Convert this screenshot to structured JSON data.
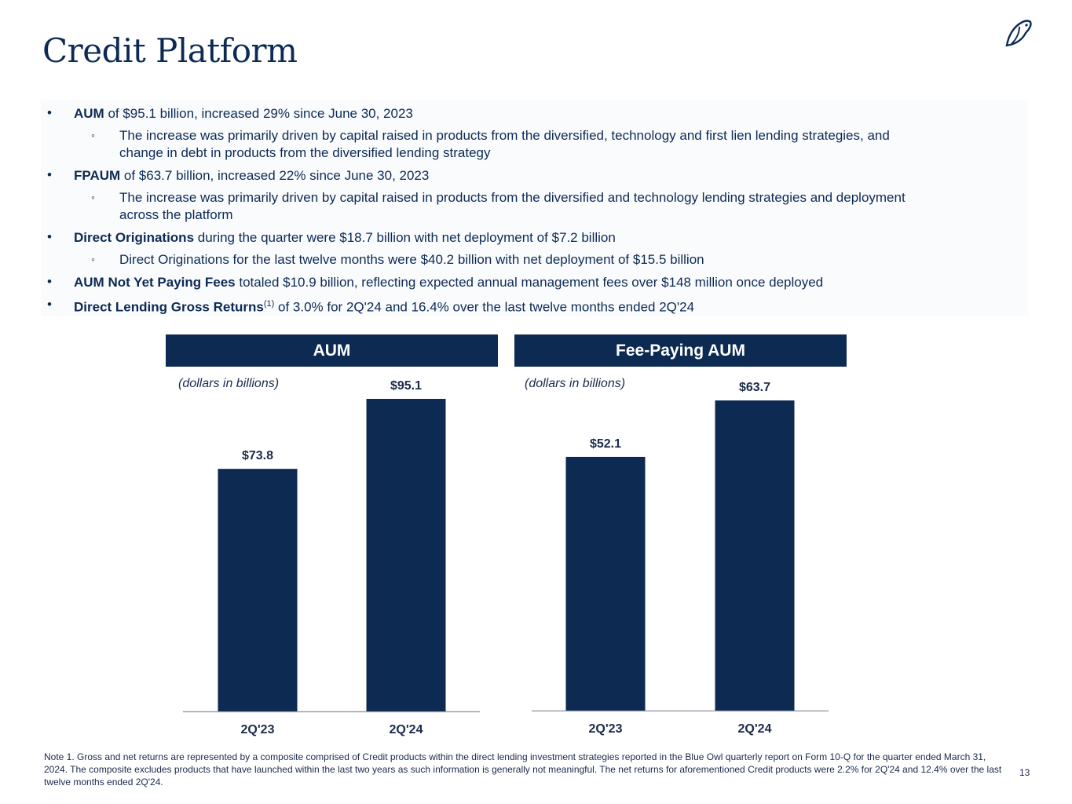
{
  "title": "Credit Platform",
  "bullets": {
    "b1": {
      "bold": "AUM",
      "rest": " of $95.1 billion, increased 29% since June 30, 2023"
    },
    "b1_sub": {
      "line1": "The increase was primarily driven by capital raised in products from the diversified, technology and first lien lending strategies, and",
      "line2": "change in debt in products from the diversified lending strategy"
    },
    "b2": {
      "bold": "FPAUM",
      "rest": " of $63.7 billion, increased 22% since June 30, 2023"
    },
    "b2_sub": {
      "line1": "The increase was primarily driven by capital raised in products from the diversified and technology lending strategies and deployment",
      "line2": "across the platform"
    },
    "b3": {
      "bold": "Direct Originations",
      "rest": " during the quarter were $18.7 billion with net deployment of $7.2 billion"
    },
    "b3_sub": {
      "line1": "Direct Originations for the last twelve months were $40.2 billion with net deployment of $15.5 billion"
    },
    "b4": {
      "bold": "AUM Not Yet Paying Fees",
      "rest": " totaled $10.9 billion, reflecting expected annual management fees over $148 million once deployed"
    },
    "b5": {
      "bold": "Direct Lending Gross Returns",
      "sup": "(1)",
      "rest": " of 3.0% for 2Q'24 and 16.4% over the last twelve months ended 2Q'24"
    },
    "bullet_char": "•",
    "sub_char": "◦"
  },
  "chart_data": [
    {
      "type": "bar",
      "title": "AUM",
      "unit_label": "(dollars in billions)",
      "categories": [
        "2Q'23",
        "2Q'24"
      ],
      "values": [
        73.8,
        95.1
      ],
      "value_labels": [
        "$73.8",
        "$95.1"
      ],
      "ylim": [
        0,
        95.1
      ],
      "color": "#0d2a52"
    },
    {
      "type": "bar",
      "title": "Fee-Paying AUM",
      "unit_label": "(dollars in billions)",
      "categories": [
        "2Q'23",
        "2Q'24"
      ],
      "values": [
        52.1,
        63.7
      ],
      "value_labels": [
        "$52.1",
        "$63.7"
      ],
      "ylim": [
        0,
        63.7
      ],
      "color": "#0d2a52"
    }
  ],
  "note": "Note 1. Gross and net returns are represented by a composite comprised of Credit products within the direct lending investment strategies reported in the Blue Owl quarterly report on Form 10-Q for the quarter ended March 31, 2024. The composite excludes products that have launched within the last two years as such information is generally not meaningful. The net returns for aforementioned Credit products were 2.2% for 2Q'24 and 12.4% over the last twelve months ended 2Q'24.",
  "page_number": "13",
  "colors": {
    "navy": "#0d2a52",
    "title": "#0c2a55"
  },
  "icons": {
    "logo": "owl-logo-icon"
  }
}
